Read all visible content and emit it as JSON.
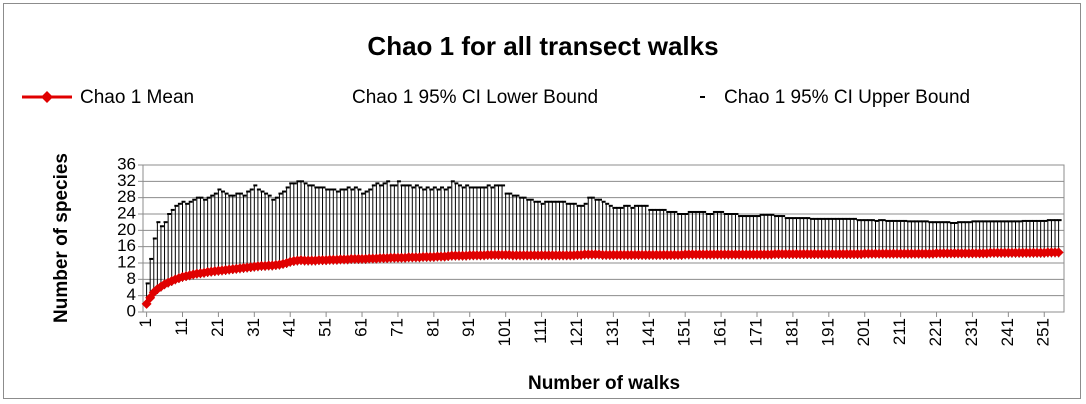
{
  "chart_data": {
    "type": "line",
    "title": "Chao 1 for all transect walks",
    "xlabel": "Number of walks",
    "ylabel": "Number of species",
    "xlim": [
      0,
      256.5
    ],
    "xticks": [
      1,
      11,
      21,
      31,
      41,
      51,
      61,
      71,
      81,
      91,
      101,
      111,
      121,
      131,
      141,
      151,
      161,
      171,
      181,
      191,
      201,
      211,
      221,
      231,
      241,
      251
    ],
    "ylim": [
      0,
      36
    ],
    "yticks": [
      0,
      4,
      8,
      12,
      16,
      20,
      24,
      28,
      32,
      36
    ],
    "grid": true,
    "legend": "top",
    "x": [
      1,
      2,
      3,
      4,
      5,
      6,
      7,
      8,
      9,
      10,
      11,
      12,
      13,
      14,
      15,
      16,
      17,
      18,
      19,
      20,
      21,
      22,
      23,
      24,
      25,
      26,
      27,
      28,
      29,
      30,
      31,
      32,
      33,
      34,
      35,
      36,
      37,
      38,
      39,
      40,
      41,
      42,
      43,
      44,
      45,
      46,
      47,
      48,
      49,
      50,
      51,
      52,
      53,
      54,
      55,
      56,
      57,
      58,
      59,
      60,
      61,
      62,
      63,
      64,
      65,
      66,
      67,
      68,
      69,
      70,
      71,
      72,
      73,
      74,
      75,
      76,
      77,
      78,
      79,
      80,
      81,
      82,
      83,
      84,
      85,
      86,
      87,
      88,
      89,
      90,
      91,
      92,
      93,
      94,
      95,
      96,
      97,
      98,
      99,
      100,
      101,
      102,
      103,
      104,
      105,
      106,
      107,
      108,
      109,
      110,
      111,
      112,
      113,
      114,
      115,
      116,
      117,
      118,
      119,
      120,
      121,
      122,
      123,
      124,
      125,
      126,
      127,
      128,
      129,
      130,
      131,
      132,
      133,
      134,
      135,
      136,
      137,
      138,
      139,
      140,
      141,
      142,
      143,
      144,
      145,
      146,
      147,
      148,
      149,
      150,
      151,
      152,
      153,
      154,
      155,
      156,
      157,
      158,
      159,
      160,
      161,
      162,
      163,
      164,
      165,
      166,
      167,
      168,
      169,
      170,
      171,
      172,
      173,
      174,
      175,
      176,
      177,
      178,
      179,
      180,
      181,
      182,
      183,
      184,
      185,
      186,
      187,
      188,
      189,
      190,
      191,
      192,
      193,
      194,
      195,
      196,
      197,
      198,
      199,
      200,
      201,
      202,
      203,
      204,
      205,
      206,
      207,
      208,
      209,
      210,
      211,
      212,
      213,
      214,
      215,
      216,
      217,
      218,
      219,
      220,
      221,
      222,
      223,
      224,
      225,
      226,
      227,
      228,
      229,
      230,
      231,
      232,
      233,
      234,
      235,
      236,
      237,
      238,
      239,
      240,
      241,
      242,
      243,
      244,
      245,
      246,
      247,
      248,
      249,
      250,
      251,
      252,
      253,
      254,
      255
    ],
    "series": [
      {
        "name": "Chao 1 Mean",
        "color": "#e00000",
        "marker": "diamond",
        "values": [
          2,
          3.5,
          4.8,
          5.6,
          6.2,
          6.8,
          7.2,
          7.6,
          8,
          8.3,
          8.6,
          8.8,
          9,
          9.2,
          9.4,
          9.5,
          9.6,
          9.8,
          9.9,
          10,
          10.1,
          10.2,
          10.3,
          10.4,
          10.5,
          10.6,
          10.7,
          10.8,
          10.9,
          11,
          11.1,
          11.2,
          11.3,
          11.3,
          11.4,
          11.4,
          11.5,
          11.6,
          11.8,
          12,
          12.3,
          12.5,
          12.6,
          12.7,
          12.6,
          12.6,
          12.6,
          12.6,
          12.7,
          12.7,
          12.7,
          12.8,
          12.8,
          12.8,
          12.9,
          12.9,
          12.9,
          13,
          13,
          13,
          13,
          13,
          13.1,
          13.1,
          13.1,
          13.2,
          13.2,
          13.2,
          13.3,
          13.3,
          13.3,
          13.3,
          13.3,
          13.4,
          13.4,
          13.4,
          13.4,
          13.5,
          13.5,
          13.5,
          13.5,
          13.6,
          13.6,
          13.6,
          13.7,
          13.8,
          13.8,
          13.8,
          13.8,
          13.8,
          13.9,
          13.9,
          13.9,
          13.9,
          13.9,
          14,
          14,
          14,
          14,
          14,
          14,
          14,
          13.9,
          13.9,
          13.9,
          13.9,
          13.9,
          13.9,
          13.9,
          13.9,
          13.9,
          13.9,
          13.9,
          13.9,
          13.9,
          13.9,
          13.9,
          13.9,
          13.9,
          13.9,
          14,
          14,
          14.1,
          14.1,
          14.1,
          14.1,
          14.1,
          14,
          14,
          14,
          14,
          14,
          14,
          14,
          14,
          14,
          14,
          14,
          14,
          14,
          14,
          14,
          14,
          14,
          14,
          14,
          14,
          14,
          14,
          14,
          14.1,
          14.1,
          14.1,
          14.1,
          14.1,
          14.1,
          14.1,
          14.1,
          14.1,
          14.1,
          14.1,
          14.1,
          14.1,
          14.1,
          14.1,
          14.1,
          14.1,
          14.1,
          14.1,
          14.1,
          14.1,
          14.1,
          14.1,
          14.1,
          14.1,
          14.2,
          14.2,
          14.2,
          14.2,
          14.2,
          14.2,
          14.2,
          14.2,
          14.2,
          14.2,
          14.2,
          14.2,
          14.2,
          14.2,
          14.2,
          14.2,
          14.2,
          14.2,
          14.2,
          14.2,
          14.2,
          14.2,
          14.2,
          14.2,
          14.2,
          14.3,
          14.3,
          14.3,
          14.3,
          14.3,
          14.3,
          14.3,
          14.3,
          14.3,
          14.3,
          14.3,
          14.3,
          14.3,
          14.3,
          14.3,
          14.3,
          14.3,
          14.3,
          14.3,
          14.3,
          14.4,
          14.4,
          14.4,
          14.4,
          14.4,
          14.4,
          14.4,
          14.4,
          14.4,
          14.4,
          14.4,
          14.4,
          14.4,
          14.4,
          14.4,
          14.5,
          14.5,
          14.5,
          14.5,
          14.5,
          14.5,
          14.5,
          14.5,
          14.5,
          14.5,
          14.5,
          14.5,
          14.5,
          14.5,
          14.5,
          14.5,
          14.6,
          14.6,
          14.6,
          14.6
        ]
      },
      {
        "name": "Chao 1 95% CI Lower Bound",
        "color": "#000000",
        "marker": "none",
        "values": [
          2,
          3,
          4,
          4.4,
          5,
          5.6,
          6,
          6.4,
          6.8,
          7.1,
          7.4,
          7.6,
          7.8,
          8,
          8.2,
          8.3,
          8.4,
          8.6,
          8.7,
          8.8,
          8.9,
          9,
          9.1,
          9.2,
          9.3,
          9.4,
          9.5,
          9.6,
          9.7,
          9.8,
          9.9,
          10,
          10.1,
          10.1,
          10.2,
          10.2,
          10.3,
          10.4,
          10.6,
          10.8,
          11.1,
          11.3,
          11.4,
          11.5,
          11.4,
          11.4,
          11.4,
          11.4,
          11.5,
          11.5,
          11.5,
          11.6,
          11.6,
          11.6,
          11.7,
          11.7,
          11.7,
          11.8,
          11.8,
          11.8,
          11.8,
          11.8,
          11.9,
          11.9,
          11.9,
          12,
          12,
          12,
          12.1,
          12.1,
          12.1,
          12.1,
          12.1,
          12.2,
          12.2,
          12.2,
          12.2,
          12.3,
          12.3,
          12.3,
          12.3,
          12.4,
          12.4,
          12.4,
          12.5,
          12.6,
          12.6,
          12.6,
          12.6,
          12.6,
          12.7,
          12.7,
          12.7,
          12.7,
          12.7,
          12.8,
          12.8,
          12.8,
          12.8,
          12.8,
          12.8,
          12.8,
          12.7,
          12.7,
          12.7,
          12.7,
          12.7,
          12.7,
          12.7,
          12.7,
          12.7,
          12.7,
          12.7,
          12.7,
          12.7,
          12.7,
          12.7,
          12.7,
          12.7,
          12.7,
          12.8,
          12.8,
          12.9,
          12.9,
          12.9,
          12.9,
          12.9,
          12.8,
          12.8,
          12.8,
          12.8,
          12.8,
          12.8,
          12.8,
          12.8,
          12.8,
          12.8,
          12.8,
          12.8,
          12.8,
          12.8,
          12.8,
          12.8,
          12.8,
          12.8,
          12.8,
          12.8,
          12.8,
          12.8,
          12.8,
          12.9,
          12.9,
          12.9,
          12.9,
          12.9,
          12.9,
          12.9,
          12.9,
          12.9,
          12.9,
          12.9,
          12.9,
          12.9,
          12.9,
          12.9,
          12.9,
          12.9,
          12.9,
          12.9,
          12.9,
          12.9,
          12.9,
          12.9,
          12.9,
          12.9,
          13,
          13,
          13,
          13,
          13,
          13,
          13,
          13,
          13,
          13,
          13,
          13,
          13,
          13,
          13,
          13,
          13,
          13,
          13,
          13,
          13,
          13,
          13,
          13,
          13,
          13.1,
          13.1,
          13.1,
          13.1,
          13.1,
          13.1,
          13.1,
          13.1,
          13.1,
          13.1,
          13.1,
          13.1,
          13.1,
          13.1,
          13.1,
          13.1,
          13.1,
          13.1,
          13.1,
          13.1,
          13.2,
          13.2,
          13.2,
          13.2,
          13.2,
          13.2,
          13.2,
          13.2,
          13.2,
          13.2,
          13.2,
          13.2,
          13.2,
          13.2,
          13.2,
          13.3,
          13.3,
          13.3,
          13.3,
          13.3,
          13.3,
          13.3,
          13.3,
          13.3,
          13.3,
          13.3,
          13.3,
          13.3,
          13.3,
          13.3,
          13.3,
          13.4,
          13.4,
          13.4,
          13.4
        ]
      },
      {
        "name": "Chao 1 95% CI Upper Bound",
        "color": "#000000",
        "marker": "dash",
        "values": [
          7,
          13,
          18,
          22,
          21,
          22,
          24,
          25,
          26,
          26.5,
          27,
          26.5,
          27,
          27.5,
          28,
          28,
          27.5,
          28,
          28.5,
          29,
          30,
          29.5,
          29,
          28.5,
          28.5,
          29,
          29,
          28.5,
          29.5,
          30,
          31,
          30,
          29.5,
          29,
          28.5,
          27.5,
          28,
          29,
          29.5,
          30.5,
          31.5,
          31.5,
          32,
          32,
          31.5,
          31,
          31,
          30.5,
          30.5,
          30.5,
          30,
          30,
          30,
          29.5,
          30,
          30,
          30.5,
          30,
          30.5,
          30,
          29,
          29.5,
          30,
          31,
          31.5,
          31,
          31.5,
          32,
          31,
          31,
          32,
          31,
          31,
          31,
          30.5,
          31,
          30.5,
          30,
          30.5,
          30,
          30.5,
          30,
          30.5,
          30,
          30.5,
          32,
          31.5,
          31,
          30.5,
          31,
          30.5,
          30.5,
          30.5,
          30.5,
          30.5,
          31,
          30.5,
          31,
          31,
          31,
          29,
          29,
          28.5,
          28.5,
          28,
          28,
          27.5,
          27.5,
          27,
          27,
          26.5,
          27,
          27,
          27,
          27,
          27,
          27,
          26.5,
          26.5,
          26.5,
          26,
          26,
          26.5,
          28,
          28,
          27.5,
          27.5,
          27,
          26.5,
          26,
          25.5,
          25.5,
          25.5,
          26,
          26,
          25.5,
          26,
          26,
          26,
          26,
          25,
          25,
          25,
          25,
          25,
          24.5,
          24.5,
          24.5,
          24,
          24,
          24,
          24.5,
          24.5,
          24.5,
          24.5,
          24.5,
          24,
          24,
          24.5,
          24.5,
          24.5,
          24,
          24,
          24,
          24,
          23.5,
          23.5,
          23.5,
          23.5,
          23.5,
          23.5,
          23.8,
          23.8,
          23.8,
          23.8,
          23.5,
          23.5,
          23.5,
          23,
          23,
          23,
          23,
          23,
          23,
          23,
          22.8,
          22.8,
          22.8,
          22.8,
          22.8,
          22.8,
          22.8,
          22.8,
          22.8,
          22.8,
          22.8,
          22.8,
          22.8,
          22.5,
          22.5,
          22.5,
          22.5,
          22.5,
          22.3,
          22.5,
          22.5,
          22.3,
          22.3,
          22.3,
          22.3,
          22.3,
          22.3,
          22.2,
          22.2,
          22.2,
          22.2,
          22.2,
          22.2,
          22,
          22,
          22,
          22,
          22,
          22,
          21.8,
          21.8,
          22,
          22,
          22,
          22,
          22.2,
          22.2,
          22.2,
          22.2,
          22.2,
          22.2,
          22.2,
          22.2,
          22.2,
          22.2,
          22.2,
          22.2,
          22.2,
          22.2,
          22.3,
          22.3,
          22.3,
          22.3,
          22.3,
          22.3,
          22.3,
          22.5,
          22.5,
          22.5,
          22.5
        ]
      }
    ]
  }
}
